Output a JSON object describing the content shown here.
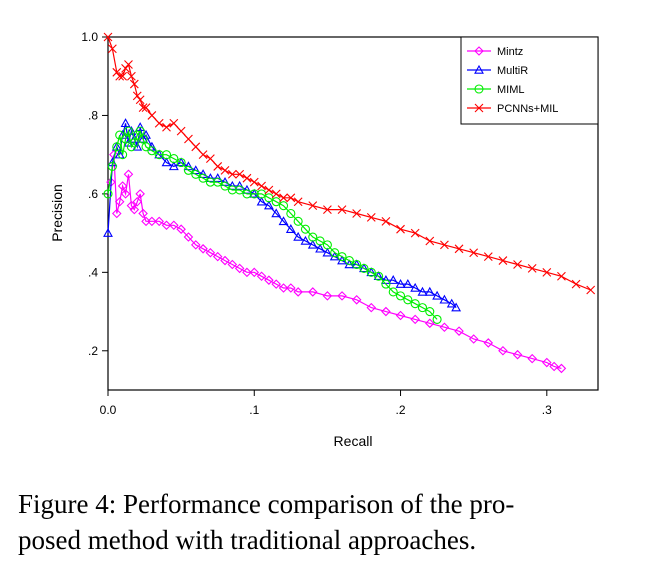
{
  "caption": {
    "line1": "Figure 4:  Performance comparison of the pro-",
    "line2": "posed method with traditional approaches."
  },
  "chart_data": {
    "type": "line",
    "title": "",
    "xlabel": "Recall",
    "ylabel": "Precision",
    "xlim": [
      0,
      0.335
    ],
    "ylim": [
      0.1,
      1.0
    ],
    "xticks": [
      0.0,
      0.1,
      0.2,
      0.3
    ],
    "xtick_labels": [
      "0.0",
      ".1",
      ".2",
      ".3"
    ],
    "yticks": [
      0.2,
      0.4,
      0.6,
      0.8,
      1.0
    ],
    "ytick_labels": [
      ".2",
      ".4",
      ".6",
      ".8",
      "1.0"
    ],
    "grid": false,
    "legend_position": "top-right",
    "series": [
      {
        "name": "Mintz",
        "color": "#ff00ff",
        "marker": "diamond",
        "x": [
          0.002,
          0.004,
          0.006,
          0.008,
          0.01,
          0.012,
          0.014,
          0.016,
          0.018,
          0.02,
          0.022,
          0.024,
          0.026,
          0.03,
          0.035,
          0.04,
          0.045,
          0.05,
          0.055,
          0.06,
          0.065,
          0.07,
          0.075,
          0.08,
          0.085,
          0.09,
          0.095,
          0.1,
          0.105,
          0.11,
          0.115,
          0.12,
          0.125,
          0.13,
          0.14,
          0.15,
          0.16,
          0.17,
          0.18,
          0.19,
          0.2,
          0.21,
          0.22,
          0.23,
          0.24,
          0.25,
          0.26,
          0.27,
          0.28,
          0.29,
          0.3,
          0.305,
          0.31
        ],
        "y": [
          0.63,
          0.7,
          0.55,
          0.58,
          0.62,
          0.6,
          0.65,
          0.57,
          0.56,
          0.58,
          0.6,
          0.55,
          0.53,
          0.53,
          0.53,
          0.52,
          0.52,
          0.51,
          0.49,
          0.47,
          0.46,
          0.45,
          0.44,
          0.43,
          0.42,
          0.41,
          0.4,
          0.4,
          0.39,
          0.38,
          0.37,
          0.36,
          0.36,
          0.35,
          0.35,
          0.34,
          0.34,
          0.33,
          0.31,
          0.3,
          0.29,
          0.28,
          0.27,
          0.26,
          0.25,
          0.23,
          0.22,
          0.2,
          0.19,
          0.18,
          0.17,
          0.16,
          0.155
        ]
      },
      {
        "name": "MultiR",
        "color": "#0000ff",
        "marker": "triangle",
        "x": [
          0.0,
          0.003,
          0.006,
          0.008,
          0.01,
          0.012,
          0.014,
          0.016,
          0.018,
          0.02,
          0.022,
          0.024,
          0.026,
          0.03,
          0.035,
          0.04,
          0.045,
          0.05,
          0.055,
          0.06,
          0.065,
          0.07,
          0.075,
          0.08,
          0.085,
          0.09,
          0.095,
          0.1,
          0.105,
          0.11,
          0.115,
          0.12,
          0.125,
          0.13,
          0.135,
          0.14,
          0.145,
          0.15,
          0.155,
          0.16,
          0.165,
          0.17,
          0.175,
          0.18,
          0.185,
          0.19,
          0.195,
          0.2,
          0.205,
          0.21,
          0.215,
          0.22,
          0.225,
          0.23,
          0.235,
          0.238
        ],
        "y": [
          0.5,
          0.68,
          0.72,
          0.7,
          0.75,
          0.78,
          0.73,
          0.76,
          0.74,
          0.72,
          0.77,
          0.74,
          0.75,
          0.72,
          0.7,
          0.68,
          0.67,
          0.68,
          0.67,
          0.66,
          0.65,
          0.64,
          0.64,
          0.63,
          0.62,
          0.62,
          0.61,
          0.6,
          0.58,
          0.57,
          0.55,
          0.53,
          0.51,
          0.49,
          0.48,
          0.47,
          0.46,
          0.45,
          0.44,
          0.43,
          0.42,
          0.42,
          0.41,
          0.4,
          0.39,
          0.38,
          0.38,
          0.37,
          0.37,
          0.36,
          0.35,
          0.35,
          0.34,
          0.33,
          0.32,
          0.31
        ]
      },
      {
        "name": "MIML",
        "color": "#00ee00",
        "marker": "circle",
        "x": [
          0.0,
          0.003,
          0.006,
          0.008,
          0.01,
          0.012,
          0.014,
          0.016,
          0.018,
          0.02,
          0.022,
          0.024,
          0.026,
          0.03,
          0.035,
          0.04,
          0.045,
          0.05,
          0.055,
          0.06,
          0.065,
          0.07,
          0.075,
          0.08,
          0.085,
          0.09,
          0.095,
          0.1,
          0.105,
          0.11,
          0.115,
          0.12,
          0.125,
          0.13,
          0.135,
          0.14,
          0.145,
          0.15,
          0.155,
          0.16,
          0.165,
          0.17,
          0.175,
          0.18,
          0.185,
          0.19,
          0.195,
          0.2,
          0.205,
          0.21,
          0.215,
          0.22,
          0.225
        ],
        "y": [
          0.6,
          0.67,
          0.72,
          0.75,
          0.7,
          0.74,
          0.76,
          0.72,
          0.73,
          0.75,
          0.76,
          0.74,
          0.72,
          0.71,
          0.7,
          0.7,
          0.69,
          0.68,
          0.66,
          0.65,
          0.64,
          0.63,
          0.63,
          0.62,
          0.61,
          0.61,
          0.6,
          0.6,
          0.6,
          0.59,
          0.58,
          0.57,
          0.55,
          0.53,
          0.51,
          0.49,
          0.48,
          0.47,
          0.45,
          0.44,
          0.43,
          0.42,
          0.41,
          0.4,
          0.39,
          0.37,
          0.35,
          0.34,
          0.33,
          0.32,
          0.31,
          0.3,
          0.28
        ]
      },
      {
        "name": "PCNNs+MIL",
        "color": "#ff0000",
        "marker": "x",
        "x": [
          0.0,
          0.003,
          0.006,
          0.008,
          0.01,
          0.012,
          0.014,
          0.016,
          0.018,
          0.02,
          0.022,
          0.024,
          0.026,
          0.03,
          0.035,
          0.04,
          0.045,
          0.05,
          0.055,
          0.06,
          0.065,
          0.07,
          0.075,
          0.08,
          0.085,
          0.09,
          0.095,
          0.1,
          0.105,
          0.11,
          0.115,
          0.12,
          0.125,
          0.13,
          0.14,
          0.15,
          0.16,
          0.17,
          0.18,
          0.19,
          0.2,
          0.21,
          0.22,
          0.23,
          0.24,
          0.25,
          0.26,
          0.27,
          0.28,
          0.29,
          0.3,
          0.31,
          0.32,
          0.33
        ],
        "y": [
          1.0,
          0.97,
          0.91,
          0.9,
          0.9,
          0.92,
          0.93,
          0.9,
          0.88,
          0.85,
          0.84,
          0.82,
          0.82,
          0.8,
          0.78,
          0.77,
          0.78,
          0.76,
          0.74,
          0.72,
          0.7,
          0.69,
          0.67,
          0.66,
          0.65,
          0.65,
          0.64,
          0.63,
          0.62,
          0.61,
          0.6,
          0.59,
          0.59,
          0.58,
          0.57,
          0.56,
          0.56,
          0.55,
          0.54,
          0.53,
          0.51,
          0.5,
          0.48,
          0.47,
          0.46,
          0.45,
          0.44,
          0.43,
          0.42,
          0.41,
          0.4,
          0.39,
          0.37,
          0.355
        ]
      }
    ]
  }
}
